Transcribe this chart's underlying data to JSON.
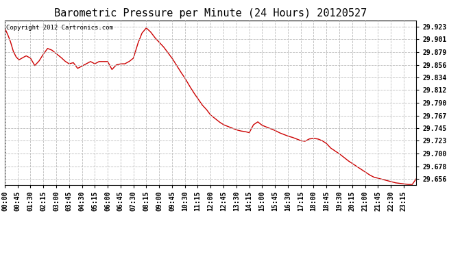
{
  "title": "Barometric Pressure per Minute (24 Hours) 20120527",
  "copyright_text": "Copyright 2012 Cartronics.com",
  "line_color": "#cc0000",
  "background_color": "#ffffff",
  "grid_color": "#bbbbbb",
  "yticks": [
    29.923,
    29.901,
    29.879,
    29.856,
    29.834,
    29.812,
    29.79,
    29.767,
    29.745,
    29.723,
    29.7,
    29.678,
    29.656
  ],
  "ylim": [
    29.645,
    29.934
  ],
  "xtick_labels": [
    "00:00",
    "00:45",
    "01:30",
    "02:15",
    "03:00",
    "03:45",
    "04:30",
    "05:15",
    "06:00",
    "06:45",
    "07:30",
    "08:15",
    "09:00",
    "09:45",
    "10:30",
    "11:15",
    "12:00",
    "12:45",
    "13:30",
    "14:15",
    "15:00",
    "15:45",
    "16:30",
    "17:15",
    "18:00",
    "18:45",
    "19:30",
    "20:15",
    "21:00",
    "21:45",
    "22:30",
    "23:15"
  ],
  "title_fontsize": 11,
  "tick_fontsize": 7,
  "copyright_fontsize": 6.5,
  "line_width": 1.0,
  "key_points_x": [
    0,
    10,
    20,
    30,
    40,
    50,
    60,
    75,
    90,
    105,
    120,
    135,
    150,
    165,
    180,
    195,
    210,
    225,
    240,
    255,
    270,
    285,
    300,
    315,
    330,
    345,
    360,
    375,
    390,
    405,
    420,
    435,
    450,
    465,
    480,
    495,
    510,
    525,
    540,
    555,
    570,
    585,
    600,
    615,
    630,
    645,
    660,
    675,
    690,
    705,
    720,
    735,
    750,
    765,
    780,
    795,
    810,
    825,
    840,
    855,
    870,
    885,
    900,
    915,
    930,
    945,
    960,
    975,
    990,
    1005,
    1020,
    1035,
    1050,
    1065,
    1080,
    1095,
    1110,
    1125,
    1140,
    1155,
    1170,
    1185,
    1200,
    1215,
    1230,
    1245,
    1260,
    1275,
    1290,
    1305,
    1320,
    1335,
    1350,
    1365,
    1380,
    1395,
    1410,
    1425,
    1439
  ],
  "key_points_y": [
    29.921,
    29.91,
    29.897,
    29.88,
    29.87,
    29.865,
    29.868,
    29.872,
    29.868,
    29.855,
    29.863,
    29.875,
    29.885,
    29.882,
    29.876,
    29.87,
    29.863,
    29.858,
    29.86,
    29.85,
    29.854,
    29.858,
    29.862,
    29.858,
    29.862,
    29.862,
    29.862,
    29.848,
    29.856,
    29.858,
    29.858,
    29.862,
    29.868,
    29.893,
    29.912,
    29.921,
    29.914,
    29.904,
    29.896,
    29.888,
    29.878,
    29.868,
    29.856,
    29.844,
    29.833,
    29.82,
    29.808,
    29.797,
    29.786,
    29.778,
    29.768,
    29.762,
    29.756,
    29.751,
    29.748,
    29.745,
    29.742,
    29.74,
    29.739,
    29.737,
    29.751,
    29.756,
    29.75,
    29.747,
    29.744,
    29.741,
    29.737,
    29.734,
    29.731,
    29.729,
    29.726,
    29.723,
    29.722,
    29.726,
    29.727,
    29.726,
    29.723,
    29.718,
    29.71,
    29.705,
    29.7,
    29.694,
    29.688,
    29.683,
    29.678,
    29.673,
    29.668,
    29.663,
    29.659,
    29.657,
    29.655,
    29.653,
    29.651,
    29.649,
    29.648,
    29.647,
    29.646,
    29.646,
    29.656
  ]
}
